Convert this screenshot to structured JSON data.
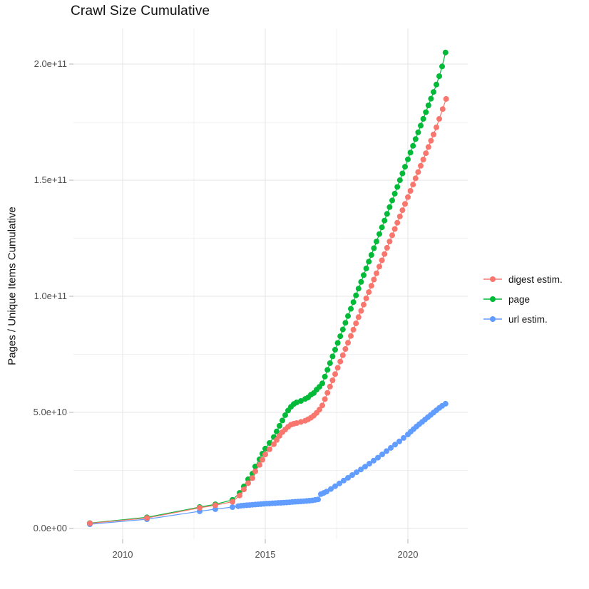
{
  "title": "Crawl Size Cumulative",
  "y_axis_title": "Pages / Unique Items Cumulative",
  "chart_data": {
    "type": "scatter",
    "title": "Crawl Size Cumulative",
    "xlabel": "",
    "ylabel": "Pages / Unique Items Cumulative",
    "value_unit": "point values are in units of 1e9 (billions); axis shows scientific notation",
    "grid": true,
    "legend_position": "right",
    "xlim": [
      2008.25,
      2022.1
    ],
    "ylim_e9": [
      -5,
      216
    ],
    "x_ticks": [
      {
        "value": 2010,
        "label": "2010"
      },
      {
        "value": 2015,
        "label": "2015"
      },
      {
        "value": 2020,
        "label": "2020"
      }
    ],
    "x_minor": [
      2012.5,
      2017.5
    ],
    "y_ticks": [
      {
        "value": 0,
        "label": "0.0e+00"
      },
      {
        "value": 50,
        "label": "5.0e+10"
      },
      {
        "value": 100,
        "label": "1.0e+11"
      },
      {
        "value": 150,
        "label": "1.5e+11"
      },
      {
        "value": 200,
        "label": "2.0e+11"
      }
    ],
    "y_minor": [
      25,
      75,
      125,
      175
    ],
    "series": [
      {
        "name": "digest estim.",
        "color": "#F8766D",
        "points": [
          [
            2008.85,
            2.2
          ],
          [
            2010.85,
            4.5
          ],
          [
            2012.7,
            8.9
          ],
          [
            2013.25,
            10.0
          ],
          [
            2013.85,
            11.5
          ],
          [
            2014.1,
            14.2
          ],
          [
            2014.25,
            16.8
          ],
          [
            2014.4,
            19.5
          ],
          [
            2014.55,
            21.7
          ],
          [
            2014.65,
            24.6
          ],
          [
            2014.8,
            27.4
          ],
          [
            2014.9,
            29.6
          ],
          [
            2015.0,
            31.9
          ],
          [
            2015.15,
            34.1
          ],
          [
            2015.3,
            36.3
          ],
          [
            2015.4,
            38.1
          ],
          [
            2015.5,
            39.9
          ],
          [
            2015.6,
            41.5
          ],
          [
            2015.7,
            42.6
          ],
          [
            2015.8,
            43.8
          ],
          [
            2015.9,
            44.7
          ],
          [
            2016.0,
            45.1
          ],
          [
            2016.1,
            45.4
          ],
          [
            2016.25,
            45.9
          ],
          [
            2016.4,
            46.4
          ],
          [
            2016.5,
            47.0
          ],
          [
            2016.6,
            47.7
          ],
          [
            2016.7,
            48.6
          ],
          [
            2016.8,
            49.8
          ],
          [
            2016.9,
            51.2
          ],
          [
            2017.0,
            53.0
          ],
          [
            2017.09,
            55.7
          ],
          [
            2017.18,
            58.4
          ],
          [
            2017.27,
            61.1
          ],
          [
            2017.36,
            63.8
          ],
          [
            2017.45,
            66.5
          ],
          [
            2017.54,
            69.2
          ],
          [
            2017.63,
            71.9
          ],
          [
            2017.72,
            74.6
          ],
          [
            2017.81,
            77.3
          ],
          [
            2017.9,
            80.0
          ],
          [
            2018.0,
            82.9
          ],
          [
            2018.09,
            85.6
          ],
          [
            2018.18,
            88.3
          ],
          [
            2018.27,
            91.0
          ],
          [
            2018.36,
            93.7
          ],
          [
            2018.45,
            96.4
          ],
          [
            2018.54,
            99.1
          ],
          [
            2018.63,
            101.8
          ],
          [
            2018.72,
            104.5
          ],
          [
            2018.81,
            107.2
          ],
          [
            2018.9,
            109.9
          ],
          [
            2019.0,
            112.8
          ],
          [
            2019.09,
            115.5
          ],
          [
            2019.18,
            118.2
          ],
          [
            2019.27,
            120.9
          ],
          [
            2019.36,
            123.6
          ],
          [
            2019.45,
            126.3
          ],
          [
            2019.54,
            129.0
          ],
          [
            2019.63,
            131.7
          ],
          [
            2019.72,
            134.4
          ],
          [
            2019.81,
            137.1
          ],
          [
            2019.9,
            139.8
          ],
          [
            2020.0,
            142.7
          ],
          [
            2020.09,
            145.4
          ],
          [
            2020.18,
            148.1
          ],
          [
            2020.27,
            150.8
          ],
          [
            2020.36,
            153.5
          ],
          [
            2020.45,
            156.2
          ],
          [
            2020.54,
            158.9
          ],
          [
            2020.63,
            161.6
          ],
          [
            2020.72,
            164.3
          ],
          [
            2020.81,
            167.0
          ],
          [
            2020.9,
            169.7
          ],
          [
            2021.0,
            172.8
          ],
          [
            2021.1,
            176.4
          ],
          [
            2021.22,
            180.6
          ],
          [
            2021.34,
            185.0
          ]
        ]
      },
      {
        "name": "page",
        "color": "#00BA38",
        "points": [
          [
            2008.85,
            2.3
          ],
          [
            2010.85,
            4.8
          ],
          [
            2012.7,
            9.2
          ],
          [
            2013.25,
            10.4
          ],
          [
            2013.85,
            12.3
          ],
          [
            2014.1,
            15.3
          ],
          [
            2014.25,
            18.1
          ],
          [
            2014.4,
            21.2
          ],
          [
            2014.55,
            23.6
          ],
          [
            2014.65,
            26.7
          ],
          [
            2014.8,
            29.8
          ],
          [
            2014.9,
            32.2
          ],
          [
            2015.0,
            34.4
          ],
          [
            2015.15,
            36.8
          ],
          [
            2015.3,
            39.4
          ],
          [
            2015.4,
            41.8
          ],
          [
            2015.5,
            44.2
          ],
          [
            2015.6,
            46.5
          ],
          [
            2015.7,
            48.8
          ],
          [
            2015.8,
            50.8
          ],
          [
            2015.9,
            52.4
          ],
          [
            2016.0,
            53.6
          ],
          [
            2016.1,
            54.3
          ],
          [
            2016.25,
            54.9
          ],
          [
            2016.4,
            55.8
          ],
          [
            2016.5,
            56.4
          ],
          [
            2016.6,
            57.6
          ],
          [
            2016.7,
            58.3
          ],
          [
            2016.8,
            59.8
          ],
          [
            2016.9,
            61.0
          ],
          [
            2017.0,
            62.5
          ],
          [
            2017.09,
            65.4
          ],
          [
            2017.18,
            68.3
          ],
          [
            2017.27,
            71.2
          ],
          [
            2017.36,
            74.1
          ],
          [
            2017.45,
            77.0
          ],
          [
            2017.54,
            79.9
          ],
          [
            2017.63,
            82.8
          ],
          [
            2017.72,
            85.7
          ],
          [
            2017.81,
            88.6
          ],
          [
            2017.9,
            91.5
          ],
          [
            2018.0,
            94.6
          ],
          [
            2018.09,
            97.5
          ],
          [
            2018.18,
            100.4
          ],
          [
            2018.27,
            103.3
          ],
          [
            2018.36,
            106.2
          ],
          [
            2018.45,
            109.1
          ],
          [
            2018.54,
            112.0
          ],
          [
            2018.63,
            114.9
          ],
          [
            2018.72,
            117.8
          ],
          [
            2018.81,
            120.7
          ],
          [
            2018.9,
            123.6
          ],
          [
            2019.0,
            126.8
          ],
          [
            2019.09,
            129.7
          ],
          [
            2019.18,
            132.6
          ],
          [
            2019.27,
            135.5
          ],
          [
            2019.36,
            138.4
          ],
          [
            2019.45,
            141.3
          ],
          [
            2019.54,
            144.2
          ],
          [
            2019.63,
            147.1
          ],
          [
            2019.72,
            150.0
          ],
          [
            2019.81,
            152.9
          ],
          [
            2019.9,
            155.8
          ],
          [
            2020.0,
            159.0
          ],
          [
            2020.09,
            161.9
          ],
          [
            2020.18,
            164.8
          ],
          [
            2020.27,
            167.7
          ],
          [
            2020.36,
            170.6
          ],
          [
            2020.45,
            173.5
          ],
          [
            2020.54,
            176.4
          ],
          [
            2020.63,
            179.3
          ],
          [
            2020.72,
            182.2
          ],
          [
            2020.81,
            185.1
          ],
          [
            2020.9,
            188.0
          ],
          [
            2021.0,
            191.2
          ],
          [
            2021.1,
            194.8
          ],
          [
            2021.2,
            199.0
          ],
          [
            2021.32,
            205.0
          ]
        ]
      },
      {
        "name": "url estim.",
        "color": "#619CFF",
        "points": [
          [
            2008.85,
            1.8
          ],
          [
            2010.85,
            4.0
          ],
          [
            2012.7,
            7.4
          ],
          [
            2013.25,
            8.3
          ],
          [
            2013.85,
            9.2
          ],
          [
            2014.05,
            9.6
          ],
          [
            2014.15,
            9.8
          ],
          [
            2014.25,
            9.9
          ],
          [
            2014.35,
            10.0
          ],
          [
            2014.45,
            10.1
          ],
          [
            2014.55,
            10.2
          ],
          [
            2014.65,
            10.3
          ],
          [
            2014.75,
            10.4
          ],
          [
            2014.85,
            10.5
          ],
          [
            2014.95,
            10.6
          ],
          [
            2015.05,
            10.7
          ],
          [
            2015.15,
            10.75
          ],
          [
            2015.25,
            10.85
          ],
          [
            2015.35,
            10.9
          ],
          [
            2015.45,
            11.0
          ],
          [
            2015.55,
            11.05
          ],
          [
            2015.65,
            11.15
          ],
          [
            2015.75,
            11.2
          ],
          [
            2015.85,
            11.3
          ],
          [
            2015.95,
            11.4
          ],
          [
            2016.05,
            11.5
          ],
          [
            2016.15,
            11.55
          ],
          [
            2016.25,
            11.65
          ],
          [
            2016.35,
            11.75
          ],
          [
            2016.45,
            11.85
          ],
          [
            2016.55,
            11.95
          ],
          [
            2016.65,
            12.1
          ],
          [
            2016.75,
            12.3
          ],
          [
            2016.85,
            12.5
          ],
          [
            2016.95,
            14.8
          ],
          [
            2017.05,
            15.3
          ],
          [
            2017.15,
            15.9
          ],
          [
            2017.3,
            17.0
          ],
          [
            2017.45,
            18.2
          ],
          [
            2017.6,
            19.4
          ],
          [
            2017.75,
            20.6
          ],
          [
            2017.9,
            21.8
          ],
          [
            2018.05,
            23.0
          ],
          [
            2018.2,
            24.2
          ],
          [
            2018.35,
            25.4
          ],
          [
            2018.5,
            26.6
          ],
          [
            2018.65,
            27.9
          ],
          [
            2018.8,
            29.2
          ],
          [
            2018.95,
            30.5
          ],
          [
            2019.1,
            31.9
          ],
          [
            2019.25,
            33.3
          ],
          [
            2019.4,
            34.7
          ],
          [
            2019.55,
            36.1
          ],
          [
            2019.7,
            37.5
          ],
          [
            2019.85,
            39.0
          ],
          [
            2020.0,
            40.5
          ],
          [
            2020.1,
            41.7
          ],
          [
            2020.2,
            42.8
          ],
          [
            2020.3,
            43.9
          ],
          [
            2020.4,
            44.9
          ],
          [
            2020.5,
            45.9
          ],
          [
            2020.6,
            46.9
          ],
          [
            2020.7,
            47.9
          ],
          [
            2020.8,
            48.9
          ],
          [
            2020.9,
            49.9
          ],
          [
            2021.0,
            50.9
          ],
          [
            2021.1,
            51.9
          ],
          [
            2021.2,
            52.8
          ],
          [
            2021.32,
            53.7
          ]
        ]
      }
    ]
  }
}
